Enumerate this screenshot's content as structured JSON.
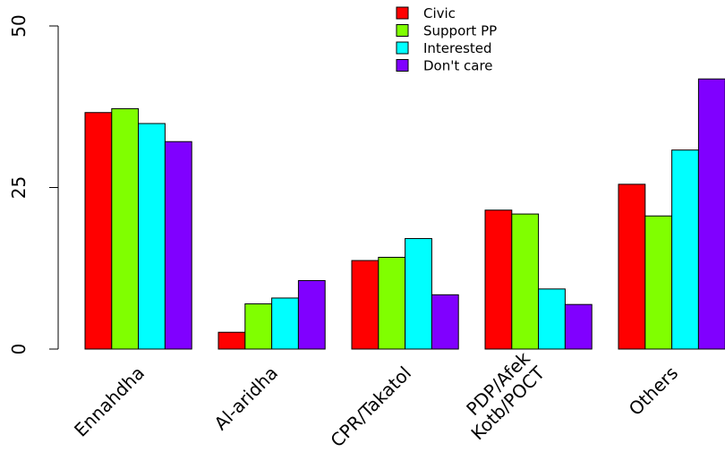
{
  "chart_data": {
    "type": "bar",
    "categories": [
      "Ennahdha",
      "Al-aridha",
      "CPR/Takatol",
      "PDP/Afek\nKotb/POCT",
      "Others"
    ],
    "series": [
      {
        "name": "Civic",
        "color": "#ff0000",
        "values": [
          36.6,
          2.6,
          13.7,
          21.5,
          25.5
        ]
      },
      {
        "name": "Support PP",
        "color": "#80ff00",
        "values": [
          37.2,
          7.0,
          14.2,
          20.9,
          20.6
        ]
      },
      {
        "name": "Interested",
        "color": "#00ffff",
        "values": [
          34.9,
          7.9,
          17.1,
          9.3,
          30.8
        ]
      },
      {
        "name": "Don't care",
        "color": "#8000ff",
        "values": [
          32.1,
          10.6,
          8.4,
          6.9,
          41.8
        ]
      }
    ],
    "ylim": [
      0,
      50
    ],
    "yticks": [
      0,
      25,
      50
    ],
    "grid": false,
    "legend_position": "top-center"
  }
}
